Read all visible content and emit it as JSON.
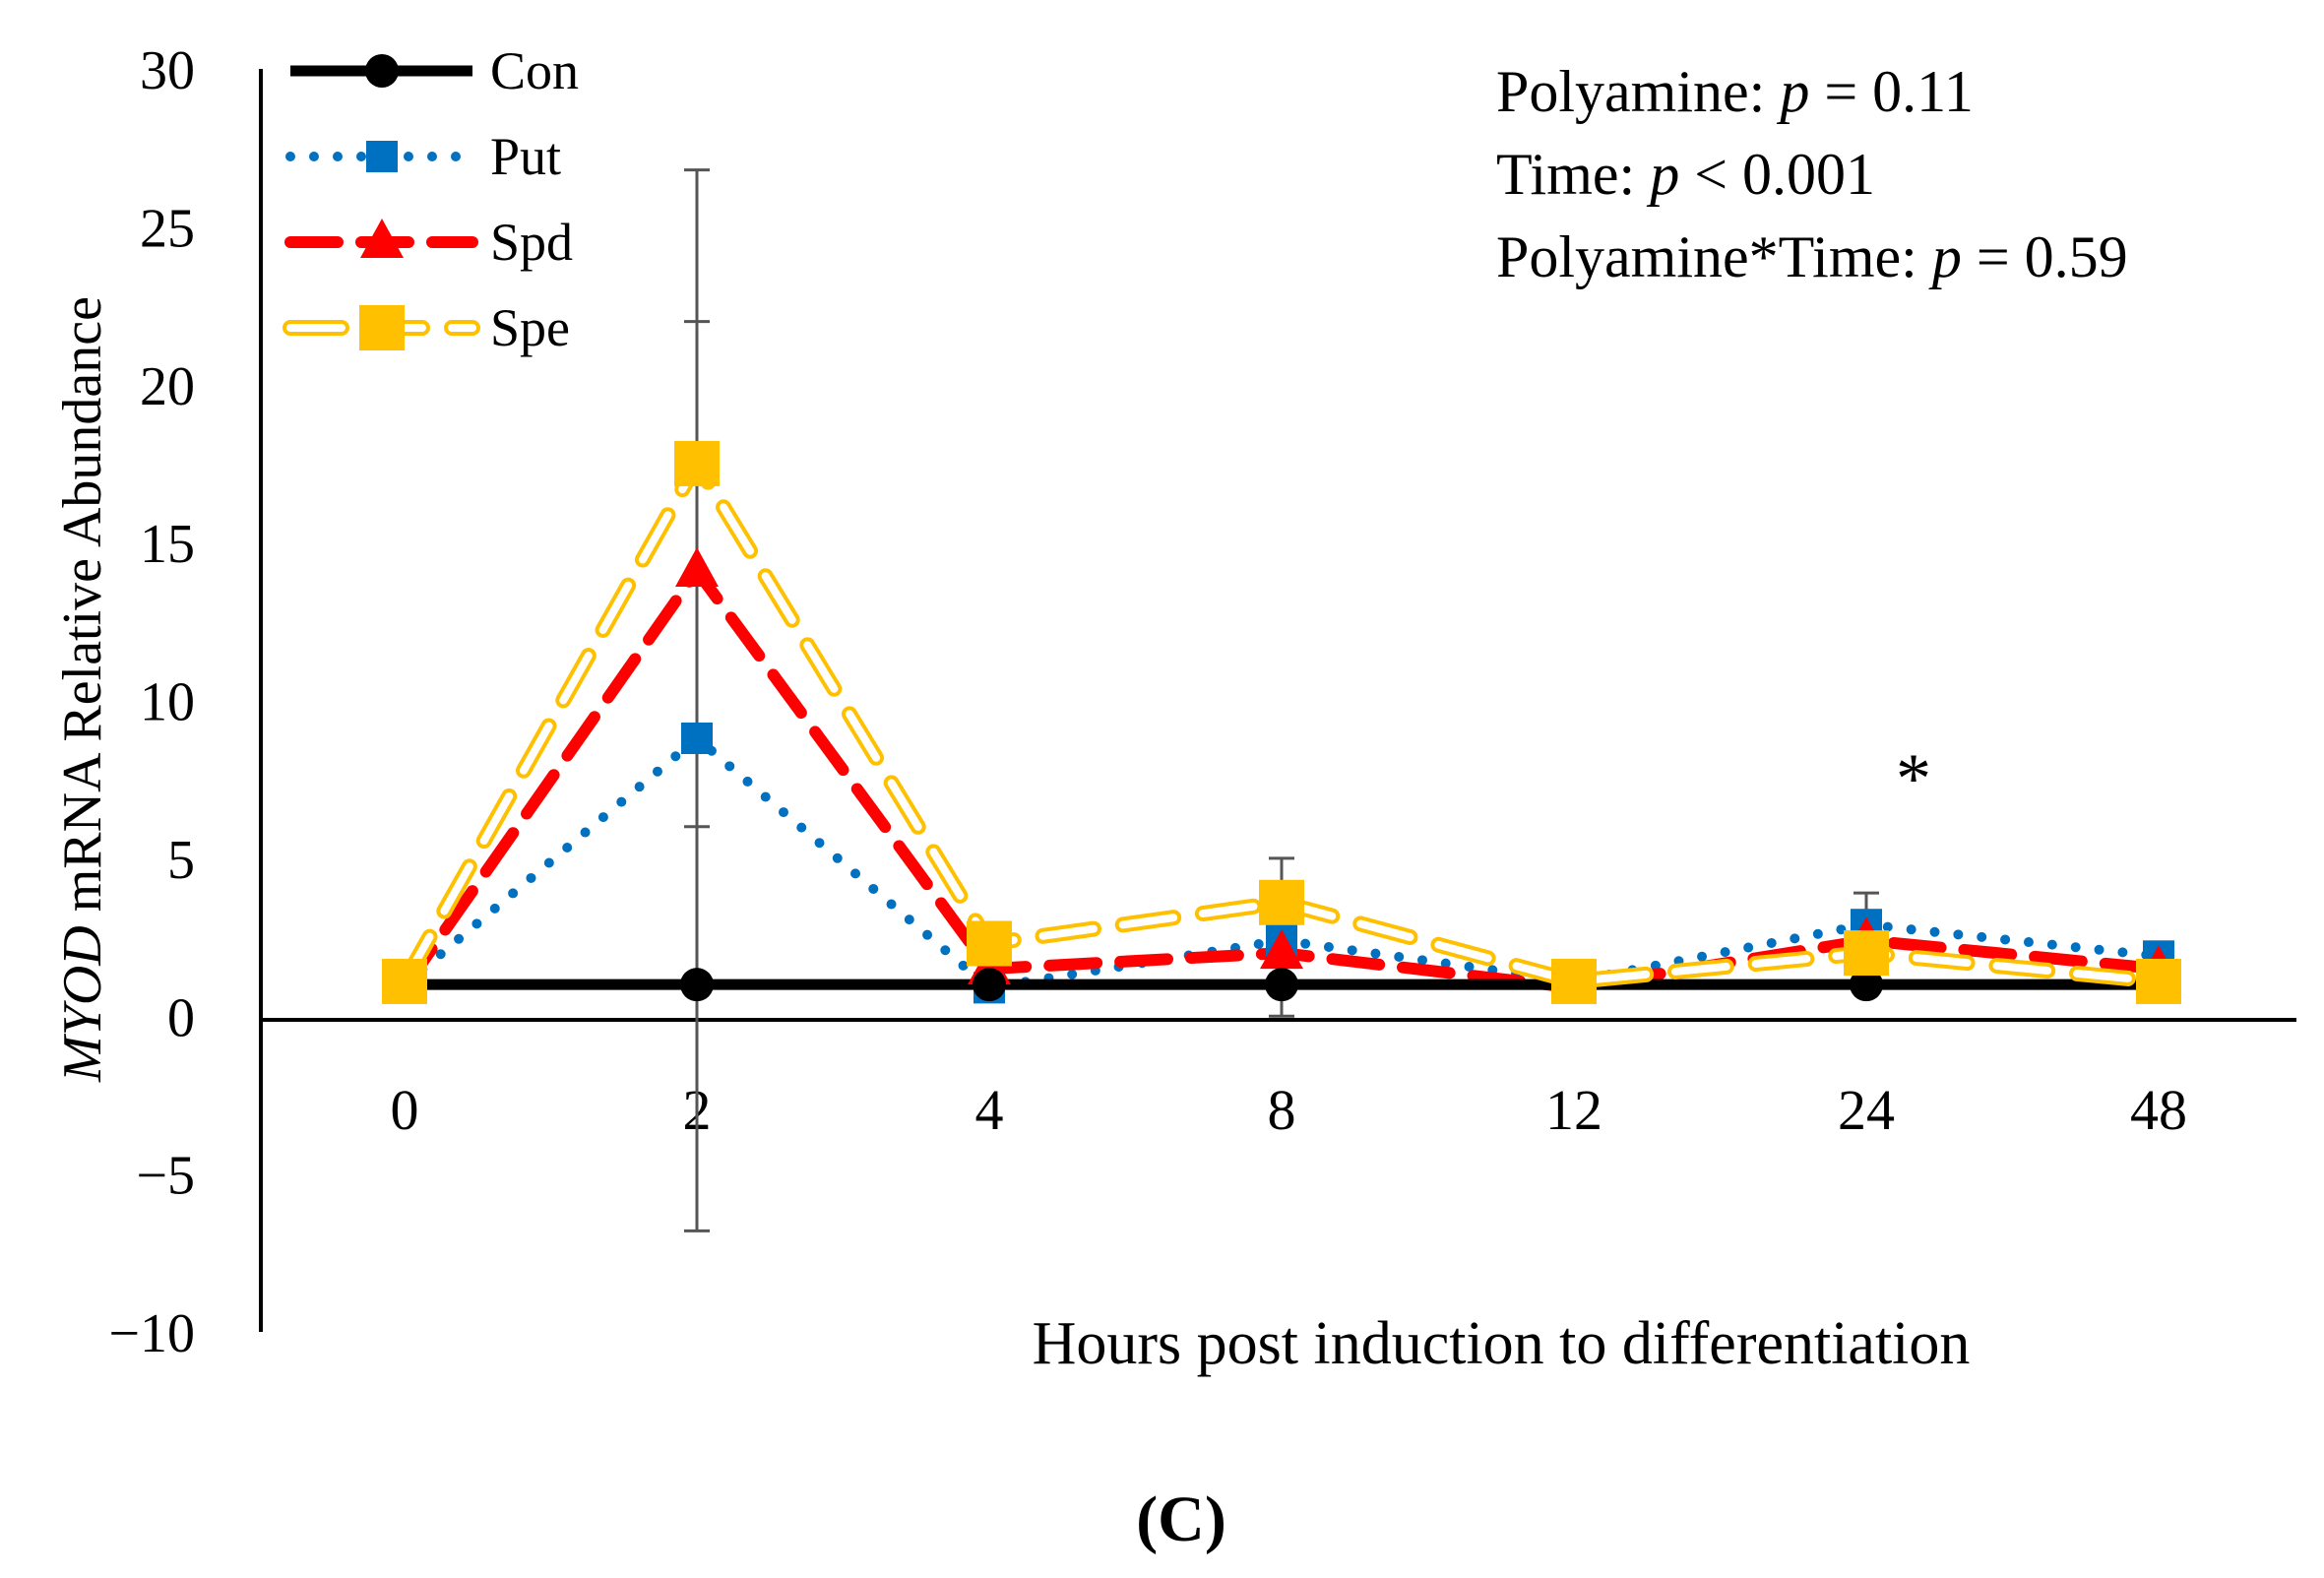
{
  "chart_data": {
    "type": "line",
    "categories": [
      "0",
      "2",
      "4",
      "8",
      "12",
      "24",
      "48"
    ],
    "ylabel_gene": "MYOD",
    "ylabel_rest": " mRNA Relative Abundance",
    "xlabel": "Hours post induction to differentiation",
    "ylim": [
      -10,
      30
    ],
    "yticks": [
      "30",
      "25",
      "20",
      "15",
      "10",
      "5",
      "0",
      "−5",
      "−10"
    ],
    "ytick_values": [
      30,
      25,
      20,
      15,
      10,
      5,
      0,
      -5,
      -10
    ],
    "series": [
      {
        "name": "Con",
        "color": "#000000",
        "style": "solid",
        "marker": "circle",
        "values": [
          1,
          1,
          1,
          1,
          1,
          1,
          1
        ]
      },
      {
        "name": "Put",
        "color": "#0070c0",
        "style": "dotted",
        "marker": "square",
        "values": [
          1,
          8.8,
          0.9,
          2.4,
          1.1,
          2.9,
          1.9
        ]
      },
      {
        "name": "Spd",
        "color": "#ff0000",
        "style": "dashed",
        "marker": "triangle",
        "values": [
          0.9,
          14.1,
          1.5,
          2.0,
          0.9,
          2.4,
          1.5
        ]
      },
      {
        "name": "Spe",
        "color": "#ffc000",
        "style": "hollow-dash",
        "marker": "square",
        "values": [
          1.1,
          17.5,
          2.3,
          3.6,
          1.1,
          2.0,
          1.1
        ]
      }
    ],
    "error_bars": [
      {
        "category": "2",
        "low": -6.8,
        "high": 26.8
      },
      {
        "category": "2",
        "low": 6.0,
        "high": 22.0
      },
      {
        "category": "8",
        "low": 0.0,
        "high": 5.0
      },
      {
        "category": "24",
        "low": 1.0,
        "high": 3.9
      }
    ],
    "stats": [
      {
        "prefix": "Polyamine: ",
        "p": "p",
        "suffix": " = 0.11"
      },
      {
        "prefix": "Time: ",
        "p": "p",
        "suffix": " < 0.001"
      },
      {
        "prefix": "Polyamine*Time:  ",
        "p": "p",
        "suffix": " = 0.59"
      }
    ],
    "significance": {
      "category": "24",
      "label": "*"
    },
    "panel_label": "(C)"
  }
}
